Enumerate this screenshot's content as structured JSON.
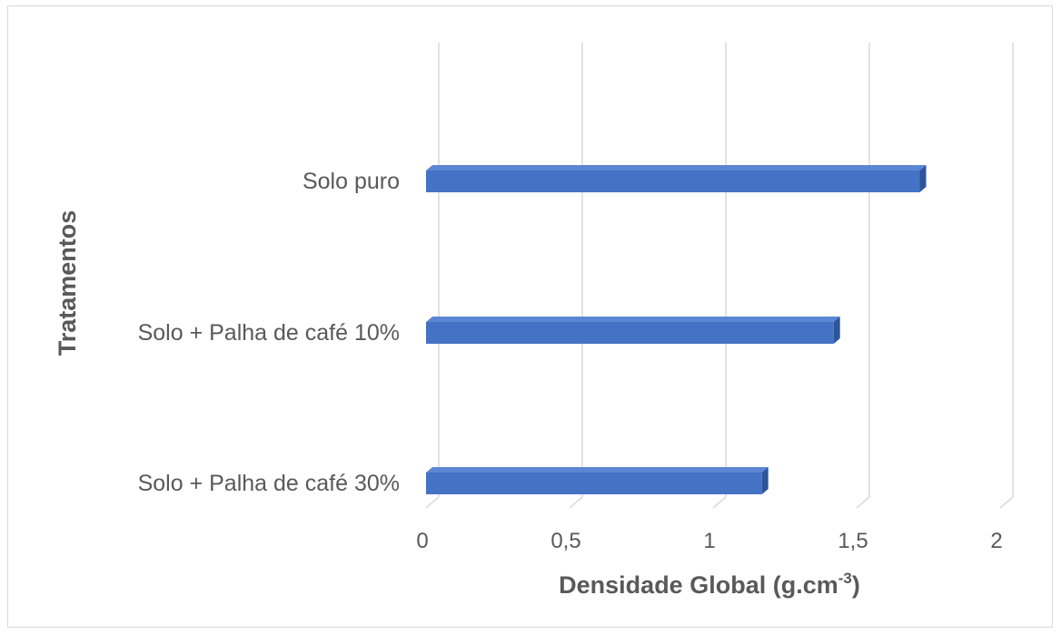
{
  "chart_data": {
    "type": "bar",
    "orientation": "horizontal",
    "style": "3d",
    "categories": [
      "Solo puro",
      "Solo + Palha de café 10%",
      "Solo + Palha de café 30%"
    ],
    "values": [
      1.72,
      1.42,
      1.17
    ],
    "xlabel_main": "Densidade Global (g.cm",
    "xlabel_sup": "-3",
    "xlabel_close": ")",
    "ylabel": "Tratamentos",
    "xlim": [
      0,
      2
    ],
    "xticks": [
      0,
      0.5,
      1,
      1.5,
      2
    ],
    "xtick_labels": [
      "0",
      "0,5",
      "1",
      "1,5",
      "2"
    ],
    "grid": "vertical",
    "legend": "none",
    "colors": {
      "bar_front": "#4472c4",
      "bar_top": "#5b86d4",
      "bar_side": "#2f5597",
      "grid": "#d9d9d9",
      "text": "#595959"
    }
  }
}
